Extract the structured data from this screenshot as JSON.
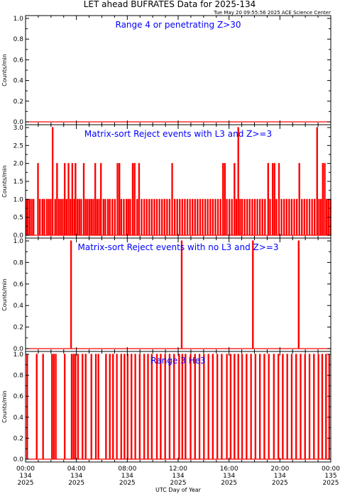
{
  "header": {
    "title": "LET ahead BUFRATES Data for 2025-134",
    "timestamp": "Tue May 20 09:55:56 2025 ACE Science Center"
  },
  "x_axis": {
    "label": "UTC Day of Year",
    "ticks": [
      {
        "hour": 0,
        "time": "00:00",
        "doy": "134",
        "year": "2025"
      },
      {
        "hour": 4,
        "time": "04:00",
        "doy": "134",
        "year": "2025"
      },
      {
        "hour": 8,
        "time": "08:00",
        "doy": "134",
        "year": "2025"
      },
      {
        "hour": 12,
        "time": "12:00",
        "doy": "134",
        "year": "2025"
      },
      {
        "hour": 16,
        "time": "16:00",
        "doy": "134",
        "year": "2025"
      },
      {
        "hour": 20,
        "time": "20:00",
        "doy": "134",
        "year": "2025"
      },
      {
        "hour": 24,
        "time": "00:00",
        "doy": "135",
        "year": "2025"
      }
    ]
  },
  "colors": {
    "trace": "#ff0000",
    "title": "#0000ff",
    "axis": "#000000"
  },
  "chart_data": [
    {
      "type": "line",
      "title": "Range 4 or  penetrating Z>30",
      "ylabel": "Counts/min",
      "ylim": [
        0,
        1.0
      ],
      "yticks": [
        "0.0",
        "0.2",
        "0.4",
        "0.6",
        "0.8",
        "1.0"
      ],
      "xlim": [
        0,
        24
      ],
      "x_unit": "hours UTC",
      "baseline": 0,
      "events": []
    },
    {
      "type": "line",
      "title": "Matrix-sort Reject events with L3 and Z>=3",
      "ylabel": "Counts/min",
      "ylim": [
        0,
        3.0
      ],
      "yticks": [
        "0.0",
        "0.5",
        "1.0",
        "1.5",
        "2.0",
        "2.5",
        "3.0"
      ],
      "xlim": [
        0,
        24
      ],
      "x_unit": "hours UTC",
      "baseline": 0,
      "events": [
        [
          0.05,
          1
        ],
        [
          0.15,
          1
        ],
        [
          0.3,
          1
        ],
        [
          0.45,
          1
        ],
        [
          0.6,
          1
        ],
        [
          0.95,
          2
        ],
        [
          1.1,
          1
        ],
        [
          1.3,
          1
        ],
        [
          1.45,
          1
        ],
        [
          1.65,
          1
        ],
        [
          1.8,
          1
        ],
        [
          1.95,
          1
        ],
        [
          2.1,
          3
        ],
        [
          2.3,
          1
        ],
        [
          2.45,
          2
        ],
        [
          2.6,
          1
        ],
        [
          2.75,
          1
        ],
        [
          2.9,
          1
        ],
        [
          3.05,
          2
        ],
        [
          3.2,
          1
        ],
        [
          3.35,
          2
        ],
        [
          3.5,
          1
        ],
        [
          3.65,
          2
        ],
        [
          3.8,
          1
        ],
        [
          3.9,
          2
        ],
        [
          4.05,
          1
        ],
        [
          4.2,
          1
        ],
        [
          4.35,
          1
        ],
        [
          4.55,
          2
        ],
        [
          4.7,
          1
        ],
        [
          4.85,
          1
        ],
        [
          5.0,
          1
        ],
        [
          5.15,
          1
        ],
        [
          5.3,
          1
        ],
        [
          5.45,
          2
        ],
        [
          5.6,
          1
        ],
        [
          5.75,
          1
        ],
        [
          5.9,
          2
        ],
        [
          6.1,
          1
        ],
        [
          6.25,
          1
        ],
        [
          6.45,
          1
        ],
        [
          6.6,
          1
        ],
        [
          6.8,
          1
        ],
        [
          7.0,
          1
        ],
        [
          7.2,
          2
        ],
        [
          7.35,
          2
        ],
        [
          7.5,
          1
        ],
        [
          7.7,
          1
        ],
        [
          7.9,
          1
        ],
        [
          8.05,
          1
        ],
        [
          8.2,
          1
        ],
        [
          8.4,
          2
        ],
        [
          8.55,
          2
        ],
        [
          8.75,
          1
        ],
        [
          8.9,
          2
        ],
        [
          9.1,
          1
        ],
        [
          9.3,
          1
        ],
        [
          9.5,
          1
        ],
        [
          9.7,
          1
        ],
        [
          9.9,
          1
        ],
        [
          10.1,
          1
        ],
        [
          10.3,
          1
        ],
        [
          10.5,
          1
        ],
        [
          10.7,
          1
        ],
        [
          10.9,
          1
        ],
        [
          11.1,
          1
        ],
        [
          11.3,
          1
        ],
        [
          11.5,
          2
        ],
        [
          11.7,
          1
        ],
        [
          11.9,
          1
        ],
        [
          12.1,
          1
        ],
        [
          12.3,
          1
        ],
        [
          12.5,
          1
        ],
        [
          12.7,
          1
        ],
        [
          12.9,
          1
        ],
        [
          13.1,
          1
        ],
        [
          13.3,
          1
        ],
        [
          13.5,
          1
        ],
        [
          13.7,
          1
        ],
        [
          13.9,
          1
        ],
        [
          14.1,
          1
        ],
        [
          14.3,
          1
        ],
        [
          14.5,
          1
        ],
        [
          14.7,
          1
        ],
        [
          14.9,
          1
        ],
        [
          15.1,
          1
        ],
        [
          15.3,
          1
        ],
        [
          15.5,
          2
        ],
        [
          15.65,
          2
        ],
        [
          15.8,
          1
        ],
        [
          16.0,
          1
        ],
        [
          16.2,
          1
        ],
        [
          16.4,
          2
        ],
        [
          16.55,
          1
        ],
        [
          16.7,
          3
        ],
        [
          16.85,
          1
        ],
        [
          17.0,
          1
        ],
        [
          17.2,
          1
        ],
        [
          17.4,
          1
        ],
        [
          17.6,
          1
        ],
        [
          17.8,
          1
        ],
        [
          18.0,
          1
        ],
        [
          18.2,
          1
        ],
        [
          18.4,
          1
        ],
        [
          18.6,
          1
        ],
        [
          18.8,
          1
        ],
        [
          19.05,
          2
        ],
        [
          19.2,
          1
        ],
        [
          19.4,
          2
        ],
        [
          19.55,
          2
        ],
        [
          19.7,
          1
        ],
        [
          19.9,
          2
        ],
        [
          20.1,
          1
        ],
        [
          20.3,
          1
        ],
        [
          20.5,
          1
        ],
        [
          20.7,
          1
        ],
        [
          20.9,
          1
        ],
        [
          21.1,
          1
        ],
        [
          21.3,
          1
        ],
        [
          21.5,
          2
        ],
        [
          21.7,
          1
        ],
        [
          21.9,
          1
        ],
        [
          22.1,
          1
        ],
        [
          22.3,
          1
        ],
        [
          22.5,
          1
        ],
        [
          22.7,
          1
        ],
        [
          22.9,
          3
        ],
        [
          23.05,
          1
        ],
        [
          23.2,
          1
        ],
        [
          23.35,
          2
        ],
        [
          23.5,
          2
        ],
        [
          23.65,
          1
        ],
        [
          23.8,
          1
        ],
        [
          23.95,
          1
        ]
      ]
    },
    {
      "type": "line",
      "title": "Matrix-sort Reject events with no L3 and Z>=3",
      "ylabel": "Counts/min",
      "ylim": [
        0,
        1.0
      ],
      "yticks": [
        "0.0",
        "0.2",
        "0.4",
        "0.6",
        "0.8",
        "1.0"
      ],
      "xlim": [
        0,
        24
      ],
      "x_unit": "hours UTC",
      "baseline": 0,
      "events": [
        [
          3.55,
          1
        ],
        [
          12.25,
          1
        ],
        [
          17.85,
          1
        ],
        [
          21.45,
          1
        ]
      ]
    },
    {
      "type": "line",
      "title": "Range 3 He3",
      "ylabel": "Counts/min",
      "ylim": [
        0,
        1.0
      ],
      "yticks": [
        "0.0",
        "0.2",
        "0.4",
        "0.6",
        "0.8",
        "1.0"
      ],
      "xlim": [
        0,
        24
      ],
      "x_unit": "hours UTC",
      "baseline": 0,
      "events": [
        [
          0.1,
          1
        ],
        [
          0.85,
          1
        ],
        [
          1.35,
          1
        ],
        [
          2.05,
          1
        ],
        [
          2.2,
          1
        ],
        [
          2.35,
          1
        ],
        [
          3.05,
          1
        ],
        [
          3.6,
          1
        ],
        [
          3.75,
          1
        ],
        [
          3.9,
          1
        ],
        [
          4.1,
          1
        ],
        [
          4.45,
          1
        ],
        [
          4.7,
          1
        ],
        [
          5.15,
          1
        ],
        [
          5.5,
          1
        ],
        [
          5.7,
          1
        ],
        [
          6.3,
          1
        ],
        [
          6.6,
          1
        ],
        [
          6.85,
          1
        ],
        [
          7.15,
          1
        ],
        [
          7.5,
          1
        ],
        [
          7.75,
          1
        ],
        [
          8.0,
          1
        ],
        [
          8.3,
          1
        ],
        [
          8.6,
          1
        ],
        [
          8.95,
          1
        ],
        [
          9.3,
          1
        ],
        [
          9.6,
          1
        ],
        [
          9.9,
          1
        ],
        [
          10.3,
          1
        ],
        [
          10.6,
          1
        ],
        [
          10.95,
          1
        ],
        [
          11.3,
          1
        ],
        [
          11.65,
          1
        ],
        [
          12.05,
          1
        ],
        [
          12.3,
          1
        ],
        [
          12.55,
          1
        ],
        [
          12.95,
          1
        ],
        [
          13.3,
          1
        ],
        [
          13.65,
          1
        ],
        [
          14.0,
          1
        ],
        [
          14.35,
          1
        ],
        [
          14.7,
          1
        ],
        [
          15.05,
          1
        ],
        [
          15.4,
          1
        ],
        [
          15.8,
          1
        ],
        [
          16.1,
          1
        ],
        [
          16.4,
          1
        ],
        [
          16.7,
          1
        ],
        [
          17.0,
          1
        ],
        [
          17.35,
          1
        ],
        [
          17.7,
          1
        ],
        [
          18.05,
          1
        ],
        [
          18.4,
          1
        ],
        [
          18.75,
          1
        ],
        [
          19.1,
          1
        ],
        [
          19.5,
          1
        ],
        [
          19.85,
          1
        ],
        [
          20.2,
          1
        ],
        [
          20.55,
          1
        ],
        [
          20.9,
          1
        ],
        [
          21.25,
          1
        ],
        [
          21.6,
          1
        ],
        [
          21.95,
          1
        ],
        [
          22.3,
          1
        ],
        [
          22.65,
          1
        ],
        [
          23.0,
          1
        ],
        [
          23.3,
          1
        ],
        [
          23.6,
          1
        ],
        [
          23.85,
          1
        ]
      ]
    }
  ]
}
